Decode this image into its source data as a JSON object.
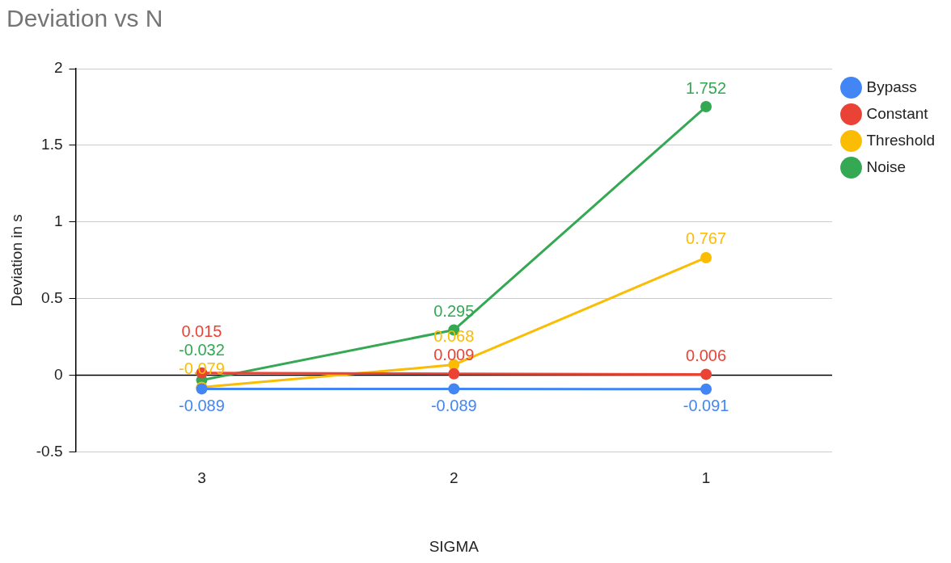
{
  "chart_data": {
    "type": "line",
    "title": "Deviation vs N",
    "xlabel": "SIGMA",
    "ylabel": "Deviation in s",
    "categories": [
      "3",
      "2",
      "1"
    ],
    "series": [
      {
        "name": "Bypass",
        "color": "#4285f4",
        "values": [
          -0.089,
          -0.089,
          -0.091
        ]
      },
      {
        "name": "Constant",
        "color": "#ea4335",
        "values": [
          0.015,
          0.009,
          0.006
        ]
      },
      {
        "name": "Threshold",
        "color": "#fbbc04",
        "values": [
          -0.079,
          0.068,
          0.767
        ]
      },
      {
        "name": "Noise",
        "color": "#34a853",
        "values": [
          -0.032,
          0.295,
          1.752
        ]
      }
    ],
    "ylim": [
      -0.5,
      2
    ],
    "yticks": [
      -0.5,
      0,
      0.5,
      1,
      1.5,
      2
    ],
    "grid": "y",
    "legend": "right",
    "marker": "circle",
    "line_style": "solid",
    "data_labels": true
  }
}
